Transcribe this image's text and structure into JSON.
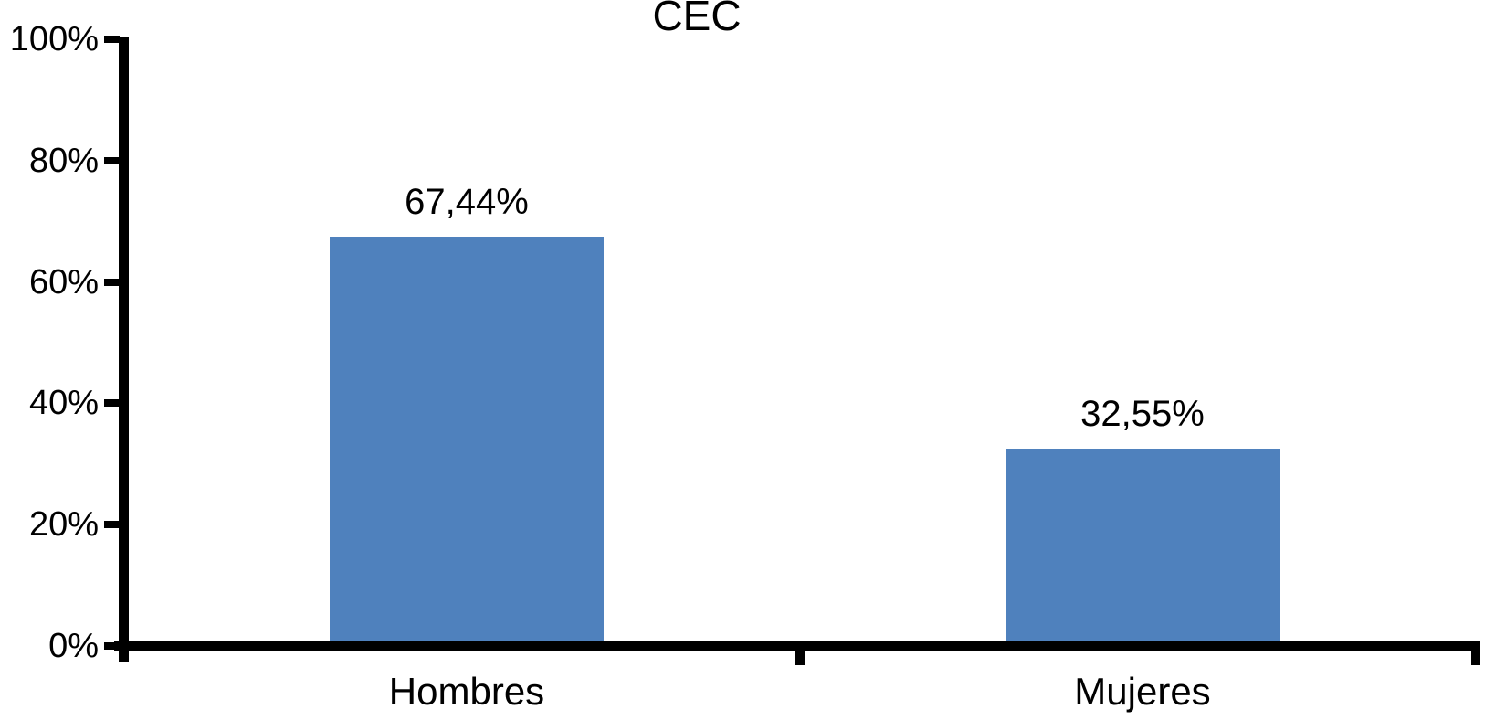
{
  "chart_data": {
    "type": "bar",
    "title": "CEC",
    "categories": [
      "Hombres",
      "Mujeres"
    ],
    "values": [
      67.44,
      32.55
    ],
    "value_labels": [
      "67,44%",
      "32,55%"
    ],
    "xlabel": "",
    "ylabel": "",
    "ylim": [
      0,
      100
    ],
    "yticks": [
      0,
      20,
      40,
      60,
      80,
      100
    ],
    "ytick_labels": [
      "0%",
      "20%",
      "40%",
      "60%",
      "80%",
      "100%"
    ],
    "bar_color": "#4F81BD",
    "axis_color": "#000000",
    "grid": false,
    "legend": false
  }
}
